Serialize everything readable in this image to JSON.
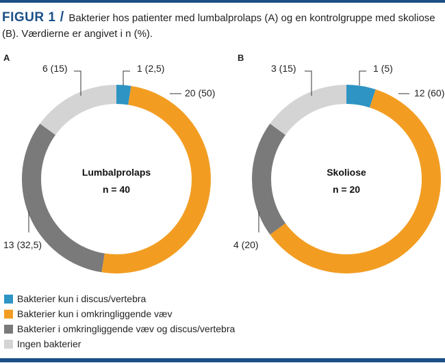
{
  "figure": {
    "label": "FIGUR 1",
    "slash": "/",
    "caption": "Bakterier hos patienter med lumbalprolaps (A) og en kontrolgruppe med skoliose (B). Værdierne er angivet i n (%).",
    "accent_color": "#1b4f86"
  },
  "chart_data": [
    {
      "type": "pie",
      "panel": "A",
      "donut": true,
      "center_label": "Lumbalprolaps",
      "center_sublabel": "n = 40",
      "categories": [
        "Bakterier kun i discus/vertebra",
        "Bakterier kun i omkringliggende væv",
        "Bakterier i omkringliggende væv og discus/vertebra",
        "Ingen bakterier"
      ],
      "values": [
        1,
        20,
        13,
        6
      ],
      "percent": [
        2.5,
        50,
        32.5,
        15
      ],
      "data_labels": [
        "1 (2,5)",
        "20 (50)",
        "13 (32,5)",
        "6 (15)"
      ],
      "colors": [
        "#2e94c4",
        "#f29d22",
        "#7a7a7a",
        "#d4d4d4"
      ]
    },
    {
      "type": "pie",
      "panel": "B",
      "donut": true,
      "center_label": "Skoliose",
      "center_sublabel": "n = 20",
      "categories": [
        "Bakterier kun i discus/vertebra",
        "Bakterier kun i omkringliggende væv",
        "Bakterier i omkringliggende væv og discus/vertebra",
        "Ingen bakterier"
      ],
      "values": [
        1,
        12,
        4,
        3
      ],
      "percent": [
        5,
        60,
        20,
        15
      ],
      "data_labels": [
        "1 (5)",
        "12 (60)",
        "4 (20)",
        "3 (15)"
      ],
      "colors": [
        "#2e94c4",
        "#f29d22",
        "#7a7a7a",
        "#d4d4d4"
      ]
    }
  ],
  "legend": {
    "items": [
      {
        "label": "Bakterier kun i discus/vertebra",
        "color": "#2e94c4"
      },
      {
        "label": "Bakterier kun i omkringliggende væv",
        "color": "#f29d22"
      },
      {
        "label": "Bakterier i omkringliggende væv og discus/vertebra",
        "color": "#7a7a7a"
      },
      {
        "label": "Ingen bakterier",
        "color": "#d4d4d4"
      }
    ]
  }
}
